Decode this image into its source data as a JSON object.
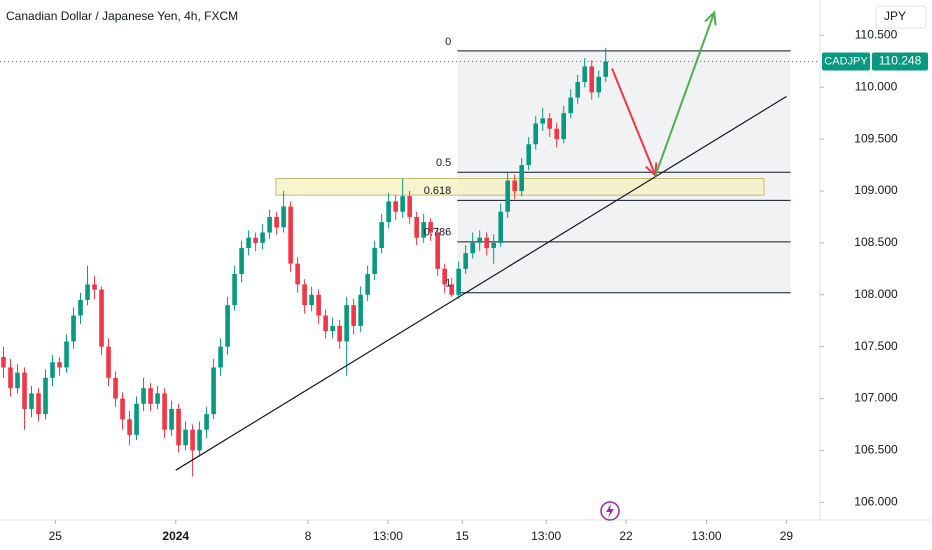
{
  "chart_data": {
    "type": "candlestick",
    "title": "Canadian Dollar / Japanese Yen, 4h, FXCM",
    "currency": "JPY",
    "up_color": "#089981",
    "down_color": "#f23645",
    "xlim": [
      -0.5,
      116.6
    ],
    "ylim": [
      105.83,
      110.84
    ],
    "xticks": [
      {
        "value": 7.4,
        "label": "25"
      },
      {
        "value": 24.6,
        "label": "2024"
      },
      {
        "value": 43.5,
        "label": "8"
      },
      {
        "value": 54.9,
        "label": "13:00"
      },
      {
        "value": 65.5,
        "label": "15"
      },
      {
        "value": 77.5,
        "label": "13:00"
      },
      {
        "value": 88.9,
        "label": "22"
      },
      {
        "value": 100.4,
        "label": "13:00"
      },
      {
        "value": 111.8,
        "label": "29"
      }
    ],
    "yticks": [
      {
        "value": 106,
        "label": "106.000"
      },
      {
        "value": 106.5,
        "label": "106.500"
      },
      {
        "value": 107,
        "label": "107.000"
      },
      {
        "value": 107.5,
        "label": "107.500"
      },
      {
        "value": 108,
        "label": "108.000"
      },
      {
        "value": 108.5,
        "label": "108.500"
      },
      {
        "value": 109,
        "label": "109.000"
      },
      {
        "value": 109.5,
        "label": "109.500"
      },
      {
        "value": 110,
        "label": "110.000"
      },
      {
        "value": 110.5,
        "label": "110.500"
      }
    ],
    "candles": [
      [
        107.4,
        107.5,
        107.2,
        107.3
      ],
      [
        107.3,
        107.38,
        107.02,
        107.1
      ],
      [
        107.1,
        107.33,
        107.05,
        107.25
      ],
      [
        107.25,
        107.3,
        106.7,
        106.9
      ],
      [
        106.9,
        107.12,
        106.82,
        107.05
      ],
      [
        107.05,
        107.1,
        106.78,
        106.85
      ],
      [
        106.85,
        107.28,
        106.8,
        107.2
      ],
      [
        107.2,
        107.42,
        107.12,
        107.35
      ],
      [
        107.35,
        107.4,
        107.22,
        107.3
      ],
      [
        107.3,
        107.62,
        107.25,
        107.55
      ],
      [
        107.55,
        107.88,
        107.48,
        107.8
      ],
      [
        107.8,
        108.02,
        107.72,
        107.95
      ],
      [
        107.95,
        108.28,
        107.9,
        108.1
      ],
      [
        108.1,
        108.18,
        107.96,
        108.05
      ],
      [
        108.05,
        108.08,
        107.42,
        107.5
      ],
      [
        107.5,
        107.58,
        107.12,
        107.2
      ],
      [
        107.2,
        107.26,
        106.92,
        107.0
      ],
      [
        107.0,
        107.06,
        106.7,
        106.8
      ],
      [
        106.8,
        106.88,
        106.55,
        106.65
      ],
      [
        106.65,
        107.02,
        106.6,
        106.95
      ],
      [
        106.95,
        107.2,
        106.88,
        107.1
      ],
      [
        107.1,
        107.15,
        106.88,
        106.95
      ],
      [
        106.95,
        107.12,
        106.9,
        107.05
      ],
      [
        107.05,
        107.1,
        106.62,
        106.7
      ],
      [
        106.7,
        106.98,
        106.64,
        106.9
      ],
      [
        106.9,
        106.95,
        106.48,
        106.55
      ],
      [
        106.55,
        106.78,
        106.5,
        106.7
      ],
      [
        106.7,
        106.75,
        106.25,
        106.5
      ],
      [
        106.5,
        106.78,
        106.44,
        106.7
      ],
      [
        106.7,
        106.92,
        106.62,
        106.85
      ],
      [
        106.85,
        107.38,
        106.8,
        107.3
      ],
      [
        107.3,
        107.58,
        107.22,
        107.5
      ],
      [
        107.5,
        107.98,
        107.42,
        107.9
      ],
      [
        107.9,
        108.28,
        107.85,
        108.2
      ],
      [
        108.2,
        108.52,
        108.12,
        108.45
      ],
      [
        108.45,
        108.62,
        108.38,
        108.55
      ],
      [
        108.55,
        108.6,
        108.42,
        108.5
      ],
      [
        108.5,
        108.68,
        108.44,
        108.6
      ],
      [
        108.6,
        108.82,
        108.54,
        108.75
      ],
      [
        108.75,
        108.8,
        108.58,
        108.65
      ],
      [
        108.65,
        109.0,
        108.6,
        108.85
      ],
      [
        108.85,
        108.9,
        108.22,
        108.3
      ],
      [
        108.3,
        108.36,
        108.02,
        108.1
      ],
      [
        108.1,
        108.15,
        107.82,
        107.9
      ],
      [
        107.9,
        108.08,
        107.84,
        108.0
      ],
      [
        108.0,
        108.05,
        107.72,
        107.8
      ],
      [
        107.8,
        107.86,
        107.58,
        107.65
      ],
      [
        107.65,
        107.78,
        107.58,
        107.7
      ],
      [
        107.7,
        107.76,
        107.48,
        107.55
      ],
      [
        107.55,
        107.98,
        107.22,
        107.9
      ],
      [
        107.9,
        107.96,
        107.62,
        107.7
      ],
      [
        107.7,
        108.08,
        107.64,
        108.0
      ],
      [
        108.0,
        108.28,
        107.94,
        108.2
      ],
      [
        108.2,
        108.52,
        108.14,
        108.45
      ],
      [
        108.45,
        108.78,
        108.4,
        108.7
      ],
      [
        108.7,
        108.98,
        108.64,
        108.9
      ],
      [
        108.9,
        108.96,
        108.72,
        108.8
      ],
      [
        108.8,
        109.12,
        108.74,
        108.95
      ],
      [
        108.95,
        109.0,
        108.68,
        108.75
      ],
      [
        108.75,
        108.8,
        108.48,
        108.55
      ],
      [
        108.55,
        108.78,
        108.5,
        108.7
      ],
      [
        108.7,
        108.74,
        108.52,
        108.6
      ],
      [
        108.6,
        108.65,
        108.18,
        108.25
      ],
      [
        108.25,
        108.3,
        108.02,
        108.1
      ],
      [
        108.1,
        108.16,
        107.98,
        108.0
      ],
      [
        108.0,
        108.32,
        107.96,
        108.25
      ],
      [
        108.25,
        108.48,
        108.2,
        108.4
      ],
      [
        108.4,
        108.6,
        108.35,
        108.5
      ],
      [
        108.5,
        108.62,
        108.42,
        108.55
      ],
      [
        108.55,
        108.6,
        108.38,
        108.45
      ],
      [
        108.45,
        108.58,
        108.3,
        108.5
      ],
      [
        108.5,
        108.88,
        108.46,
        108.8
      ],
      [
        108.8,
        109.18,
        108.74,
        109.1
      ],
      [
        109.1,
        109.16,
        108.92,
        109.0
      ],
      [
        109.0,
        109.32,
        108.95,
        109.25
      ],
      [
        109.25,
        109.52,
        109.2,
        109.45
      ],
      [
        109.45,
        109.72,
        109.4,
        109.65
      ],
      [
        109.65,
        109.8,
        109.58,
        109.7
      ],
      [
        109.7,
        109.75,
        109.52,
        109.6
      ],
      [
        109.6,
        109.66,
        109.42,
        109.5
      ],
      [
        109.5,
        109.82,
        109.46,
        109.75
      ],
      [
        109.75,
        109.98,
        109.7,
        109.9
      ],
      [
        109.9,
        110.12,
        109.84,
        110.05
      ],
      [
        110.05,
        110.28,
        110.0,
        110.2
      ],
      [
        110.2,
        110.26,
        109.88,
        109.95
      ],
      [
        109.95,
        110.16,
        109.9,
        110.1
      ],
      [
        110.1,
        110.38,
        110.05,
        110.248
      ]
    ],
    "last_price": {
      "symbol": "CADJPY",
      "value": 110.248
    },
    "fib": {
      "x": [
        64.8,
        112.4
      ],
      "levels": [
        {
          "ratio": 0,
          "price": 110.35
        },
        {
          "ratio": 0.5,
          "price": 109.18
        },
        {
          "ratio": 0.618,
          "price": 108.91
        },
        {
          "ratio": 0.786,
          "price": 108.51
        },
        {
          "ratio": 1,
          "price": 108.02
        }
      ]
    },
    "zone": {
      "x": [
        38.9,
        108.6
      ],
      "y": [
        108.96,
        109.12
      ],
      "color": "#f5f0c0"
    },
    "trendline": {
      "x": [
        24.6,
        111.8
      ],
      "y": [
        106.31,
        109.91
      ]
    },
    "arrows": [
      {
        "x": [
          86.9,
          93.1
        ],
        "y": [
          110.18,
          109.15
        ],
        "color": "#f23645"
      },
      {
        "x": [
          93.1,
          101.5
        ],
        "y": [
          109.15,
          110.72
        ],
        "color": "#4caf50"
      }
    ]
  }
}
